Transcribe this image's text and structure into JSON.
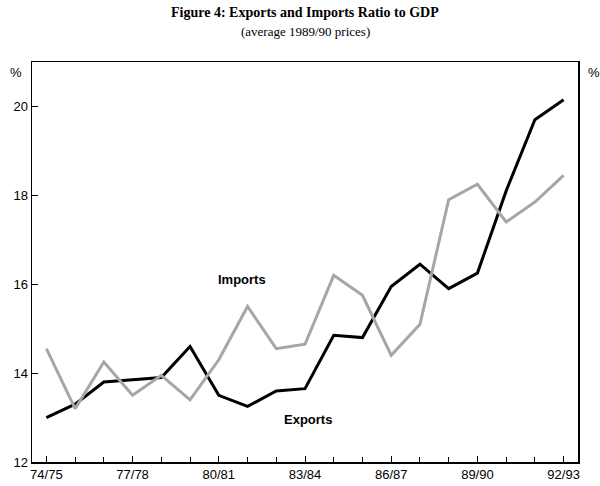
{
  "chart_data": {
    "type": "line",
    "title": "Figure 4: Exports and Imports Ratio to GDP",
    "subtitle": "(average 1989/90 prices)",
    "ylabel": "%",
    "categories": [
      "74/75",
      null,
      null,
      "77/78",
      null,
      null,
      "80/81",
      null,
      null,
      "83/84",
      null,
      null,
      "86/87",
      null,
      null,
      "89/90",
      null,
      null,
      "92/93"
    ],
    "series": [
      {
        "name": "Exports",
        "color": "#000000",
        "values": [
          13.0,
          13.3,
          13.8,
          13.85,
          13.9,
          14.6,
          13.5,
          13.25,
          13.6,
          13.65,
          14.85,
          14.8,
          15.95,
          16.45,
          15.9,
          16.25,
          18.1,
          19.7,
          20.15
        ]
      },
      {
        "name": "Imports",
        "color": "#a6a6a6",
        "values": [
          14.55,
          13.2,
          14.25,
          13.5,
          13.95,
          13.4,
          14.3,
          15.5,
          14.55,
          14.65,
          16.2,
          15.75,
          14.4,
          15.1,
          17.9,
          18.25,
          17.4,
          17.85,
          18.45
        ]
      }
    ],
    "ylim": [
      12,
      21
    ],
    "yticks": [
      12,
      14,
      16,
      18,
      20
    ],
    "y2lim": [
      12,
      21
    ],
    "y2ticks": [
      12,
      14,
      16,
      18,
      20
    ],
    "grid": false
  }
}
